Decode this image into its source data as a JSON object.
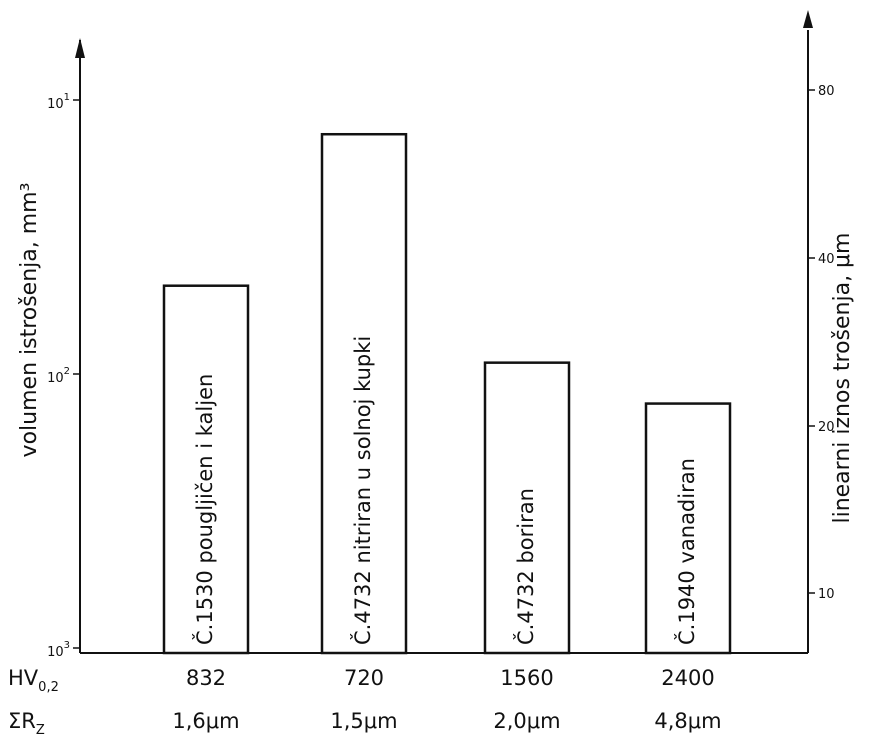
{
  "chart_data": {
    "type": "bar",
    "categories": [
      "Č.1530 pougljičen i kaljen",
      "Č.4732 nitriran u solnoj kupki",
      "Č.4732 boriran",
      "Č.1940 vanadiran"
    ],
    "values": [
      0.021,
      0.075,
      0.011,
      0.0078
    ],
    "y_scale": "log",
    "ylim": [
      0.001,
      0.1
    ],
    "ylabel": "volumen istrošenja, mm³",
    "y_ticks": [
      {
        "value": 0.1,
        "base": "10",
        "exp": "1"
      },
      {
        "value": 0.01,
        "base": "10",
        "exp": "2"
      },
      {
        "value": 0.001,
        "base": "10",
        "exp": "3"
      }
    ],
    "y2label": "linearni iznos trošenja, μm",
    "y2_ticks": [
      {
        "label": "80",
        "value": 80
      },
      {
        "label": "40",
        "value": 40
      },
      {
        "label": "20",
        "value": 20
      },
      {
        "label": "10",
        "value": 10
      }
    ],
    "rows": [
      {
        "label": "HV",
        "sub": "0,2",
        "values": [
          "832",
          "720",
          "1560",
          "2400"
        ]
      },
      {
        "label": "ΣR",
        "sub": "Z",
        "values": [
          "1,6μm",
          "1,5μm",
          "2,0μm",
          "4,8μm"
        ]
      }
    ],
    "grid": false,
    "legend": "none"
  }
}
